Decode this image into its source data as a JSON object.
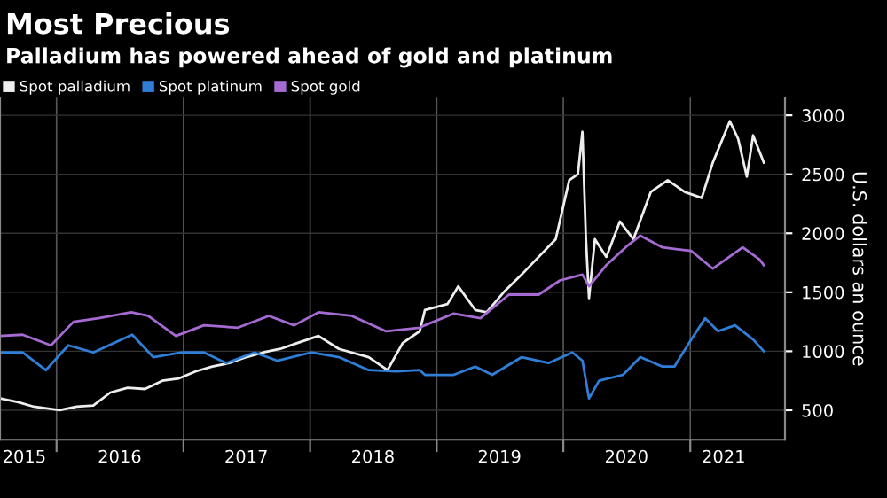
{
  "chart_data": {
    "type": "line",
    "title": "Most Precious",
    "subtitle": "Palladium has powered ahead of gold and platinum",
    "ylabel": "U.S. dollars an ounce",
    "xlim": [
      "2015-07-22",
      "2021-10-01"
    ],
    "ylim": [
      250,
      3150
    ],
    "yticks": [
      500,
      1000,
      1500,
      2000,
      2500,
      3000
    ],
    "xticks": [
      {
        "value": "2016-01-01",
        "label": null
      },
      {
        "value": "2017-01-01",
        "label": null
      },
      {
        "value": "2018-01-01",
        "label": null
      },
      {
        "value": "2019-01-01",
        "label": null
      },
      {
        "value": "2020-01-01",
        "label": null
      },
      {
        "value": "2021-01-01",
        "label": null
      },
      {
        "value": "2015-09-30",
        "label": "2015"
      },
      {
        "value": "2016-07-01",
        "label": "2016"
      },
      {
        "value": "2017-07-01",
        "label": "2017"
      },
      {
        "value": "2018-07-01",
        "label": "2018"
      },
      {
        "value": "2019-07-01",
        "label": "2019"
      },
      {
        "value": "2020-07-01",
        "label": "2020"
      },
      {
        "value": "2021-04-07",
        "label": "2021"
      }
    ],
    "grid": true,
    "legend": "top left",
    "series": [
      {
        "name": "Spot palladium",
        "color": "#eeeeee",
        "x": [
          "2015-07-22",
          "2015-09-10",
          "2015-10-28",
          "2016-01-10",
          "2016-02-28",
          "2016-04-16",
          "2016-06-04",
          "2016-07-24",
          "2016-09-12",
          "2016-11-01",
          "2016-12-19",
          "2017-02-06",
          "2017-03-25",
          "2017-05-13",
          "2017-07-01",
          "2017-08-19",
          "2017-10-07",
          "2017-11-25",
          "2018-01-25",
          "2018-03-25",
          "2018-06-19",
          "2018-08-12",
          "2018-09-25",
          "2018-11-13",
          "2018-11-28",
          "2019-02-01",
          "2019-03-04",
          "2019-04-22",
          "2019-05-25",
          "2019-07-13",
          "2019-09-03",
          "2019-10-22",
          "2019-12-10",
          "2020-01-18",
          "2020-02-12",
          "2020-02-25",
          "2020-03-06",
          "2020-03-15",
          "2020-04-01",
          "2020-05-04",
          "2020-06-12",
          "2020-07-21",
          "2020-09-09",
          "2020-10-28",
          "2020-12-16",
          "2021-02-03",
          "2021-03-07",
          "2021-04-25",
          "2021-05-19",
          "2021-06-13",
          "2021-07-01",
          "2021-08-01"
        ],
        "values": [
          600,
          570,
          530,
          500,
          530,
          540,
          650,
          690,
          680,
          750,
          770,
          830,
          870,
          900,
          950,
          990,
          1020,
          1070,
          1130,
          1020,
          950,
          840,
          1070,
          1170,
          1350,
          1400,
          1550,
          1350,
          1330,
          1500,
          1650,
          1800,
          1950,
          2450,
          2500,
          2860,
          1960,
          1450,
          1950,
          1800,
          2100,
          1950,
          2350,
          2450,
          2350,
          2300,
          2600,
          2950,
          2800,
          2480,
          2830,
          2600
        ]
      },
      {
        "name": "Spot platinum",
        "color": "#2f7fd8",
        "x": [
          "2015-07-22",
          "2015-09-25",
          "2015-12-01",
          "2016-02-04",
          "2016-04-16",
          "2016-08-06",
          "2016-10-06",
          "2016-12-28",
          "2017-03-01",
          "2017-05-04",
          "2017-07-25",
          "2017-09-28",
          "2018-01-04",
          "2018-03-25",
          "2018-06-19",
          "2018-09-06",
          "2018-11-13",
          "2018-11-28",
          "2019-02-19",
          "2019-04-22",
          "2019-06-10",
          "2019-09-03",
          "2019-11-19",
          "2020-01-27",
          "2020-02-25",
          "2020-03-15",
          "2020-04-13",
          "2020-06-21",
          "2020-08-10",
          "2020-10-13",
          "2020-11-16",
          "2021-01-04",
          "2021-02-13",
          "2021-03-22",
          "2021-05-10",
          "2021-07-01",
          "2021-08-01"
        ],
        "values": [
          990,
          990,
          840,
          1050,
          990,
          1140,
          950,
          990,
          990,
          900,
          990,
          920,
          990,
          950,
          840,
          830,
          840,
          800,
          800,
          870,
          800,
          950,
          900,
          990,
          920,
          600,
          750,
          800,
          950,
          870,
          870,
          1100,
          1280,
          1170,
          1220,
          1100,
          1000
        ]
      },
      {
        "name": "Spot gold",
        "color": "#a66bd3",
        "x": [
          "2015-07-22",
          "2015-09-25",
          "2015-12-16",
          "2016-02-19",
          "2016-05-01",
          "2016-08-03",
          "2016-09-21",
          "2016-12-10",
          "2017-03-01",
          "2017-06-07",
          "2017-09-04",
          "2017-11-16",
          "2018-01-25",
          "2018-05-01",
          "2018-08-07",
          "2018-11-13",
          "2018-11-28",
          "2019-02-19",
          "2019-05-07",
          "2019-07-28",
          "2019-10-22",
          "2019-12-22",
          "2020-02-25",
          "2020-03-15",
          "2020-05-04",
          "2020-07-06",
          "2020-08-10",
          "2020-10-13",
          "2021-01-04",
          "2021-03-07",
          "2021-06-01",
          "2021-07-19",
          "2021-08-01"
        ],
        "values": [
          1130,
          1140,
          1050,
          1250,
          1280,
          1330,
          1300,
          1130,
          1220,
          1200,
          1300,
          1220,
          1330,
          1300,
          1170,
          1200,
          1220,
          1320,
          1280,
          1480,
          1480,
          1600,
          1650,
          1550,
          1730,
          1900,
          1980,
          1880,
          1850,
          1700,
          1880,
          1780,
          1730
        ]
      }
    ]
  }
}
